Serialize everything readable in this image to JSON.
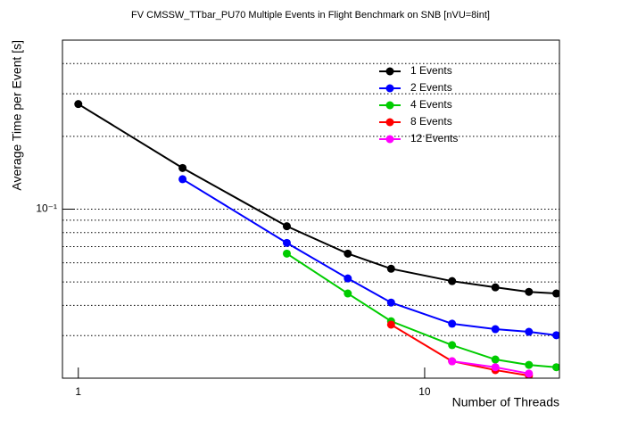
{
  "chart_data": {
    "type": "line",
    "title": "FV CMSSW_TTbar_PU70 Multiple Events in Flight Benchmark on SNB [nVU=8int]",
    "x_label": "Number of Threads",
    "y_label": "Average Time per Event [s]",
    "log_x": true,
    "log_y": true,
    "xlim": [
      0.9,
      24.5
    ],
    "ylim": [
      0.02,
      0.5
    ],
    "xticks": [
      1,
      10
    ],
    "yticks": [
      {
        "value": 0.1,
        "label": "10⁻¹"
      }
    ],
    "ygrid": [
      0.03,
      0.04,
      0.05,
      0.06,
      0.07,
      0.08,
      0.09,
      0.1,
      0.2,
      0.3,
      0.4
    ],
    "legend": "top-right",
    "series": [
      {
        "name": "1 Events",
        "color": "#000000",
        "x": [
          1,
          2,
          4,
          6,
          8,
          12,
          16,
          20,
          24
        ],
        "values": [
          0.272,
          0.148,
          0.085,
          0.0655,
          0.0567,
          0.0504,
          0.0475,
          0.0455,
          0.0448
        ]
      },
      {
        "name": "2 Events",
        "color": "#0000ff",
        "x": [
          2,
          4,
          6,
          8,
          12,
          16,
          20,
          24
        ],
        "values": [
          0.133,
          0.0725,
          0.0517,
          0.0411,
          0.0336,
          0.0319,
          0.0311,
          0.0301
        ]
      },
      {
        "name": "4 Events",
        "color": "#00cc00",
        "x": [
          4,
          6,
          8,
          12,
          16,
          20,
          24
        ],
        "values": [
          0.0655,
          0.0448,
          0.0344,
          0.0274,
          0.0239,
          0.0227,
          0.0222
        ]
      },
      {
        "name": "8 Events",
        "color": "#ff0000",
        "x": [
          8,
          12,
          16,
          20
        ],
        "values": [
          0.0333,
          0.0235,
          0.0216,
          0.0205
        ]
      },
      {
        "name": "12 Events",
        "color": "#ff00ff",
        "x": [
          12,
          16,
          20
        ],
        "values": [
          0.0235,
          0.0222,
          0.0209
        ]
      }
    ]
  }
}
